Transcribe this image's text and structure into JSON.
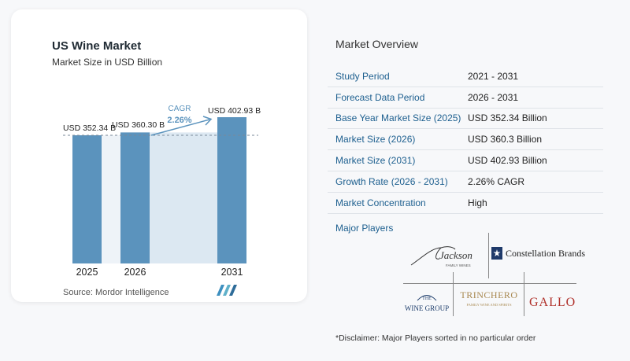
{
  "chart_card": {
    "title": "US Wine Market",
    "subtitle": "Market Size in USD Billion",
    "source": "Source:  Mordor Intelligence",
    "cagr_label": "CAGR",
    "cagr_value": "2.26%"
  },
  "chart_data": {
    "type": "bar",
    "title": "US Wine Market",
    "subtitle": "Market Size in USD Billion",
    "categories": [
      "2025",
      "2026",
      "2031"
    ],
    "values": [
      352.34,
      360.3,
      402.93
    ],
    "value_labels": [
      "USD 352.34 B",
      "USD 360.30 B",
      "USD 402.93 B"
    ],
    "annotation": {
      "label": "CAGR",
      "value": "2.26%"
    },
    "colors": {
      "bar": "#5b93bd",
      "band": "#dce8f2",
      "gap": "#eef3f8"
    }
  },
  "overview": {
    "title": "Market Overview",
    "rows": [
      {
        "label": "Study Period",
        "value": "2021 - 2031"
      },
      {
        "label": "Forecast Data Period",
        "value": "2026 - 2031"
      },
      {
        "label": "Base Year Market Size (2025)",
        "value": "USD 352.34 Billion"
      },
      {
        "label": "Market Size (2026)",
        "value": "USD 360.3 Billion"
      },
      {
        "label": "Market Size (2031)",
        "value": "USD 402.93 Billion"
      },
      {
        "label": "Growth Rate (2026 - 2031)",
        "value": "2.26% CAGR"
      },
      {
        "label": "Market Concentration",
        "value": "High"
      }
    ]
  },
  "players": {
    "title": "Major Players",
    "logos": {
      "jackson": {
        "name": "Jackson",
        "sub": "FAMILY WINES"
      },
      "constellation": {
        "name": "Constellation Brands"
      },
      "winegroup": {
        "top": "THE",
        "name": "WINE GROUP"
      },
      "trinchero": {
        "name": "TRINCHERO",
        "sub": "FAMILY WINE AND SPIRITS"
      },
      "gallo": {
        "name": "GALLO"
      }
    }
  },
  "disclaimer": "*Disclaimer: Major Players sorted in no particular order"
}
